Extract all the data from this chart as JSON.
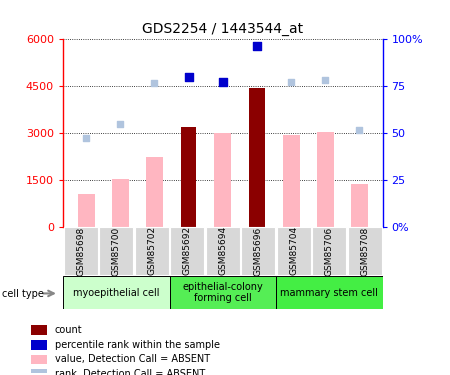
{
  "title": "GDS2254 / 1443544_at",
  "samples": [
    "GSM85698",
    "GSM85700",
    "GSM85702",
    "GSM85692",
    "GSM85694",
    "GSM85696",
    "GSM85704",
    "GSM85706",
    "GSM85708"
  ],
  "count_values": [
    null,
    null,
    null,
    3200,
    null,
    4450,
    null,
    null,
    null
  ],
  "value_absent": [
    1050,
    1520,
    2250,
    null,
    3000,
    null,
    2950,
    3050,
    1380
  ],
  "rank_absent_left": [
    2850,
    3300,
    4600,
    null,
    4650,
    null,
    4650,
    4700,
    3100
  ],
  "percentile_left": [
    null,
    null,
    null,
    4800,
    4650,
    5800,
    null,
    null,
    null
  ],
  "ylim_left": [
    0,
    6000
  ],
  "ylim_right": [
    0,
    100
  ],
  "yticks_left": [
    0,
    1500,
    3000,
    4500,
    6000
  ],
  "ytick_labels_left": [
    "0",
    "1500",
    "3000",
    "4500",
    "6000"
  ],
  "yticks_right": [
    0,
    25,
    50,
    75,
    100
  ],
  "ytick_labels_right": [
    "0%",
    "25",
    "50",
    "75",
    "100%"
  ],
  "count_color": "#8B0000",
  "value_absent_color": "#FFB6C1",
  "rank_absent_color": "#b0c4de",
  "percentile_color": "#0000cc",
  "cell_types": [
    {
      "label": "myoepithelial cell",
      "start": 0,
      "end": 3,
      "color": "#ccffcc"
    },
    {
      "label": "epithelial-colony\nforming cell",
      "start": 3,
      "end": 6,
      "color": "#44ee44"
    },
    {
      "label": "mammary stem cell",
      "start": 6,
      "end": 9,
      "color": "#44ee44"
    }
  ],
  "legend_items": [
    {
      "label": "count",
      "color": "#8B0000"
    },
    {
      "label": "percentile rank within the sample",
      "color": "#0000cc"
    },
    {
      "label": "value, Detection Call = ABSENT",
      "color": "#FFB6C1"
    },
    {
      "label": "rank, Detection Call = ABSENT",
      "color": "#b0c4de"
    }
  ]
}
